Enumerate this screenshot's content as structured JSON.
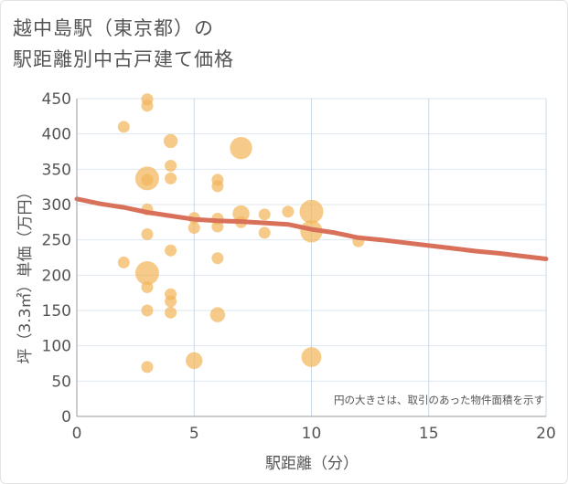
{
  "chart_data": {
    "type": "scatter",
    "title_line1": "越中島駅（東京都）の",
    "title_line2": "駅距離別中古戸建て価格",
    "xlabel": "駅距離（分）",
    "ylabel": "坪（3.3㎡）単価（万円）",
    "xlim": [
      0,
      20
    ],
    "ylim": [
      0,
      450
    ],
    "xticks": [
      0,
      5,
      10,
      15,
      20
    ],
    "yticks": [
      0,
      50,
      100,
      150,
      200,
      250,
      300,
      350,
      400,
      450
    ],
    "note": "円の大きさは、取引のあった物件面積を示す",
    "bubble_color": "#f2b65c",
    "trend_color": "#d9705a",
    "points": [
      {
        "x": 2,
        "y": 410,
        "s": 1
      },
      {
        "x": 2,
        "y": 218,
        "s": 1
      },
      {
        "x": 3,
        "y": 449,
        "s": 1
      },
      {
        "x": 3,
        "y": 440,
        "s": 1
      },
      {
        "x": 3,
        "y": 337,
        "s": 4
      },
      {
        "x": 3,
        "y": 335,
        "s": 1
      },
      {
        "x": 3,
        "y": 293,
        "s": 1
      },
      {
        "x": 3,
        "y": 258,
        "s": 1
      },
      {
        "x": 3,
        "y": 203,
        "s": 4
      },
      {
        "x": 3,
        "y": 183,
        "s": 1
      },
      {
        "x": 3,
        "y": 150,
        "s": 1
      },
      {
        "x": 3,
        "y": 70,
        "s": 1
      },
      {
        "x": 4,
        "y": 390,
        "s": 1.4
      },
      {
        "x": 4,
        "y": 355,
        "s": 1
      },
      {
        "x": 4,
        "y": 337,
        "s": 1
      },
      {
        "x": 4,
        "y": 235,
        "s": 1
      },
      {
        "x": 4,
        "y": 173,
        "s": 1
      },
      {
        "x": 4,
        "y": 163,
        "s": 1
      },
      {
        "x": 4,
        "y": 147,
        "s": 1
      },
      {
        "x": 5,
        "y": 281,
        "s": 1
      },
      {
        "x": 5,
        "y": 267,
        "s": 1
      },
      {
        "x": 5,
        "y": 79,
        "s": 2
      },
      {
        "x": 6,
        "y": 335,
        "s": 1
      },
      {
        "x": 6,
        "y": 326,
        "s": 1
      },
      {
        "x": 6,
        "y": 280,
        "s": 1
      },
      {
        "x": 6,
        "y": 269,
        "s": 1
      },
      {
        "x": 6,
        "y": 224,
        "s": 1
      },
      {
        "x": 6,
        "y": 144,
        "s": 1.6
      },
      {
        "x": 7,
        "y": 380,
        "s": 3.5
      },
      {
        "x": 7,
        "y": 287,
        "s": 2
      },
      {
        "x": 7,
        "y": 275,
        "s": 1
      },
      {
        "x": 8,
        "y": 286,
        "s": 1
      },
      {
        "x": 8,
        "y": 260,
        "s": 1
      },
      {
        "x": 9,
        "y": 290,
        "s": 1
      },
      {
        "x": 10,
        "y": 290,
        "s": 4
      },
      {
        "x": 10,
        "y": 262,
        "s": 3.5
      },
      {
        "x": 10,
        "y": 84,
        "s": 2.8
      },
      {
        "x": 12,
        "y": 248,
        "s": 1
      }
    ],
    "trend": {
      "x": [
        0,
        1,
        2,
        3,
        4,
        5,
        6,
        7,
        8,
        9,
        10,
        11,
        12,
        13,
        14,
        15,
        16,
        17,
        18,
        19,
        20
      ],
      "y": [
        308,
        301,
        296,
        289,
        284,
        279,
        277,
        276,
        274,
        272,
        265,
        260,
        253,
        250,
        246,
        242,
        238,
        234,
        231,
        227,
        223
      ]
    }
  }
}
